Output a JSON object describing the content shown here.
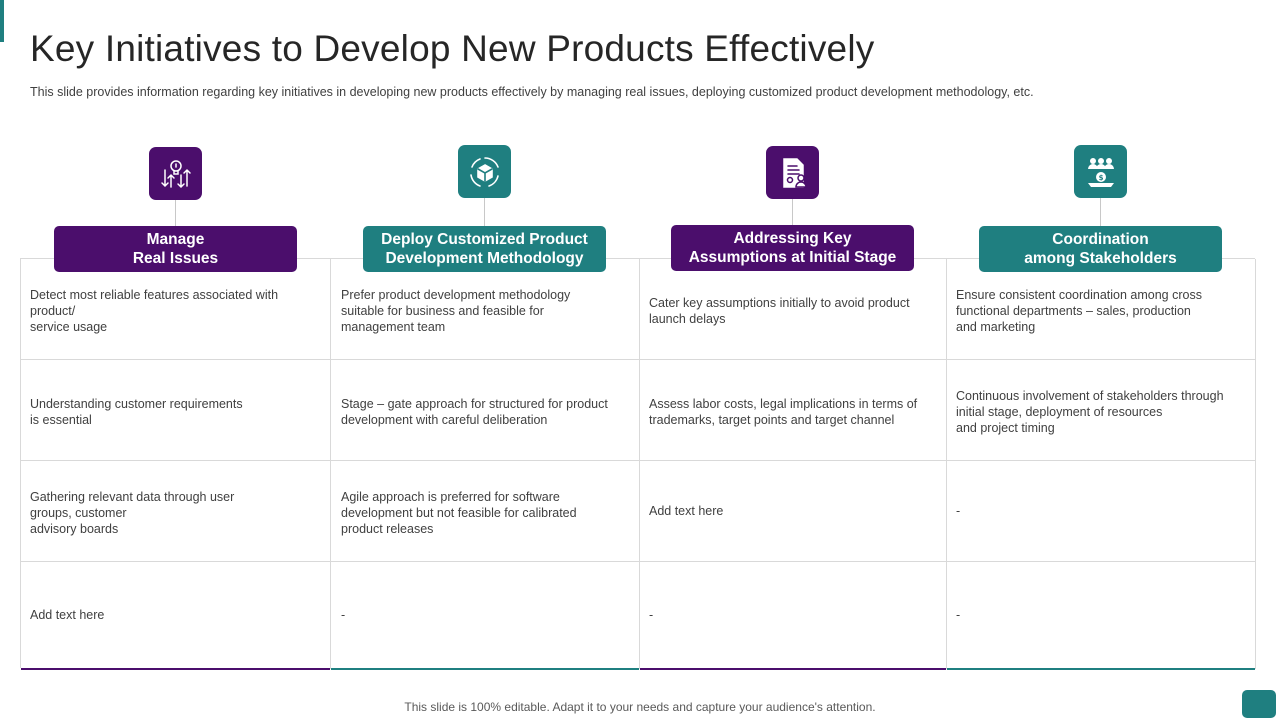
{
  "title": "Key Initiatives to Develop New Products Effectively",
  "subtitle": "This slide provides  information  regarding  key initiatives in developing  new products effectively  by managing  real issues, deploying customized product development  methodology, etc.",
  "colors": {
    "purple": "#4b0e6c",
    "teal": "#1f7f80"
  },
  "columns": [
    {
      "header": "Manage\nReal Issues",
      "icon": "lightbulb-arrows-icon",
      "color": "purple",
      "rows": [
        "Detect most reliable features associated with\nproduct/\nservice usage",
        "Understanding  customer requirements\nis essential",
        "Gathering relevant  data through user\ngroups,  customer\nadvisory  boards",
        "Add text here"
      ]
    },
    {
      "header": "Deploy Customized Product\nDevelopment Methodology",
      "icon": "cube-cycle-icon",
      "color": "teal",
      "rows": [
        "Prefer product development  methodology\nsuitable for business and feasible for\nmanagement  team",
        "Stage – gate approach  for structured for product\ndevelopment  with careful deliberation",
        "Agile approach  is preferred  for software\ndevelopment  but not feasible for calibrated\nproduct releases",
        "-"
      ]
    },
    {
      "header": "Addressing Key\nAssumptions at Initial  Stage",
      "icon": "document-person-icon",
      "color": "purple",
      "rows": [
        "Cater key assumptions initially to avoid product\nlaunch delays",
        "Assess labor costs, legal implications in terms of\ntrademarks, target points and target channel",
        "Add text here",
        "-"
      ]
    },
    {
      "header": "Coordination\namong Stakeholders",
      "icon": "stakeholders-dollar-icon",
      "color": "teal",
      "rows": [
        "Ensure consistent coordination  among cross\nfunctional departments – sales, production\nand marketing",
        "Continuous involvement  of stakeholders through\ninitial stage, deployment of resources\nand project timing",
        "-",
        "-"
      ]
    }
  ],
  "footer": "This slide is 100% editable. Adapt it to your needs and capture your audience's attention."
}
